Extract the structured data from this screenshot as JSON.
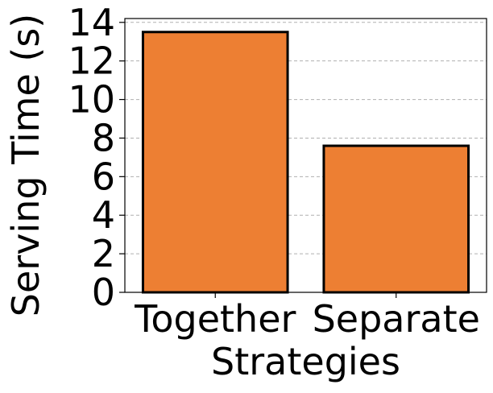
{
  "chart_data": {
    "type": "bar",
    "categories": [
      "Together",
      "Separate"
    ],
    "values": [
      13.5,
      7.6
    ],
    "title": "",
    "xlabel": "Strategies",
    "ylabel": "Serving Time (s)",
    "ylim": [
      0,
      14.2
    ],
    "yticks": [
      0,
      2,
      4,
      6,
      8,
      10,
      12,
      14
    ],
    "grid": "y-dashed",
    "bar_color": "#ed7f33",
    "edge_color": "#000000",
    "grid_color": "#b0b0b0"
  }
}
